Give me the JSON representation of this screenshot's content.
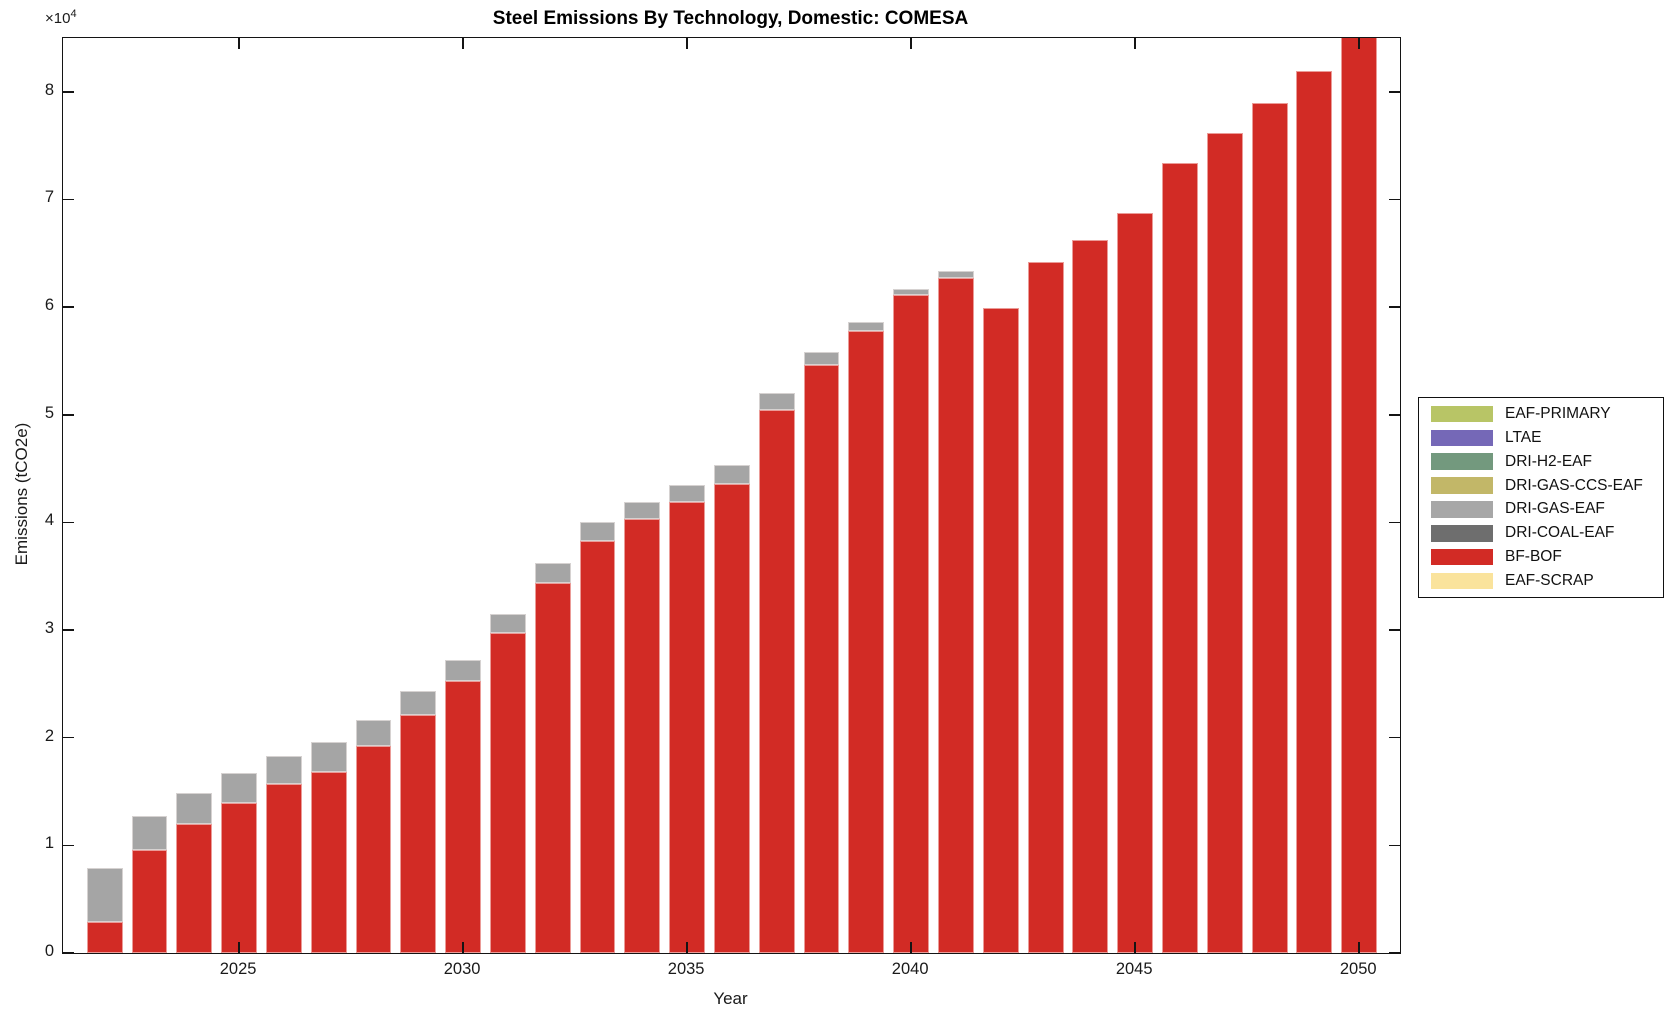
{
  "figure": {
    "title": "Steel Emissions By Technology, Domestic: COMESA",
    "xlabel": "Year",
    "ylabel": "Emissions (tCO2e)",
    "y_axis_multiplier_base": "×10",
    "y_axis_multiplier_exponent": "4"
  },
  "axes": {
    "xlim": [
      2021.07,
      2050.91
    ],
    "ylim": [
      0,
      85000
    ],
    "xticks": [
      2025,
      2030,
      2035,
      2040,
      2045,
      2050
    ],
    "xtick_labels": [
      "2025",
      "2030",
      "2035",
      "2040",
      "2045",
      "2050"
    ],
    "yticks": [
      0,
      10000,
      20000,
      30000,
      40000,
      50000,
      60000,
      70000,
      80000
    ],
    "ytick_labels": [
      "0",
      "1",
      "2",
      "3",
      "4",
      "5",
      "6",
      "7",
      "8"
    ],
    "grid": false,
    "box": true,
    "tick_direction": "in"
  },
  "legend": {
    "position": "right-outside",
    "entries": [
      {
        "label": "EAF-PRIMARY",
        "color": "#B8C566"
      },
      {
        "label": "LTAE",
        "color": "#7568B7"
      },
      {
        "label": "DRI-H2-EAF",
        "color": "#73997E"
      },
      {
        "label": "DRI-GAS-CCS-EAF",
        "color": "#C2B768"
      },
      {
        "label": "DRI-GAS-EAF",
        "color": "#A7A7A7"
      },
      {
        "label": "DRI-COAL-EAF",
        "color": "#6E6E6E"
      },
      {
        "label": "BF-BOF",
        "color": "#D22B25"
      },
      {
        "label": "EAF-SCRAP",
        "color": "#FAE39C"
      }
    ]
  },
  "chart_data": {
    "type": "bar",
    "stacked": true,
    "title": "Steel Emissions By Technology, Domestic: COMESA",
    "xlabel": "Year",
    "ylabel": "Emissions (tCO2e)",
    "ylim": [
      0,
      85000
    ],
    "bar_width_fraction": 0.8,
    "x": [
      2022,
      2023,
      2024,
      2025,
      2026,
      2027,
      2028,
      2029,
      2030,
      2031,
      2032,
      2033,
      2034,
      2035,
      2036,
      2037,
      2038,
      2039,
      2040,
      2041,
      2042,
      2043,
      2044,
      2045,
      2046,
      2047,
      2048,
      2049,
      2050
    ],
    "stack_order_bottom_to_top": [
      "EAF-SCRAP",
      "BF-BOF",
      "DRI-COAL-EAF",
      "DRI-GAS-EAF",
      "DRI-GAS-CCS-EAF",
      "DRI-H2-EAF",
      "LTAE",
      "EAF-PRIMARY"
    ],
    "series": [
      {
        "name": "EAF-PRIMARY",
        "color": "#B8C566",
        "values": [
          0,
          0,
          0,
          0,
          0,
          0,
          0,
          0,
          0,
          0,
          0,
          0,
          0,
          0,
          0,
          0,
          0,
          0,
          0,
          0,
          0,
          0,
          0,
          0,
          0,
          0,
          0,
          0,
          0
        ]
      },
      {
        "name": "LTAE",
        "color": "#7568B7",
        "values": [
          0,
          0,
          0,
          0,
          0,
          0,
          0,
          0,
          0,
          0,
          0,
          0,
          0,
          0,
          0,
          0,
          0,
          0,
          0,
          0,
          0,
          0,
          0,
          0,
          0,
          0,
          0,
          0,
          0
        ]
      },
      {
        "name": "DRI-H2-EAF",
        "color": "#73997E",
        "values": [
          0,
          0,
          0,
          0,
          0,
          0,
          0,
          0,
          0,
          0,
          0,
          0,
          0,
          0,
          0,
          0,
          0,
          0,
          0,
          0,
          0,
          0,
          0,
          0,
          0,
          0,
          0,
          0,
          0
        ]
      },
      {
        "name": "DRI-GAS-CCS-EAF",
        "color": "#C2B768",
        "values": [
          0,
          0,
          0,
          0,
          0,
          0,
          0,
          0,
          0,
          0,
          0,
          0,
          0,
          0,
          0,
          0,
          0,
          0,
          0,
          0,
          0,
          0,
          0,
          0,
          0,
          0,
          0,
          0,
          0
        ]
      },
      {
        "name": "DRI-GAS-EAF",
        "color": "#A5A5A5",
        "values": [
          5000,
          3100,
          2900,
          2800,
          2600,
          2800,
          2400,
          2200,
          1900,
          1800,
          1800,
          1700,
          1600,
          1600,
          1700,
          1600,
          1200,
          800,
          600,
          700,
          0,
          0,
          0,
          0,
          0,
          0,
          0,
          0,
          0
        ]
      },
      {
        "name": "DRI-COAL-EAF",
        "color": "#6E6E6E",
        "values": [
          0,
          0,
          0,
          0,
          0,
          0,
          0,
          0,
          0,
          0,
          0,
          0,
          0,
          0,
          0,
          0,
          0,
          0,
          0,
          0,
          0,
          0,
          0,
          0,
          0,
          0,
          0,
          0,
          0
        ]
      },
      {
        "name": "BF-BOF",
        "color": "#D22B25",
        "values": [
          2900,
          9600,
          12000,
          13900,
          15700,
          16800,
          19200,
          22100,
          25300,
          29700,
          34400,
          38300,
          40300,
          41900,
          43600,
          50400,
          54600,
          57800,
          61100,
          62700,
          59900,
          64200,
          66200,
          68700,
          73400,
          76200,
          79000,
          81900,
          85500
        ]
      },
      {
        "name": "EAF-SCRAP",
        "color": "#FAE39C",
        "values": [
          0,
          0,
          0,
          0,
          0,
          0,
          0,
          0,
          0,
          0,
          0,
          0,
          0,
          0,
          0,
          0,
          0,
          0,
          0,
          0,
          0,
          0,
          0,
          0,
          0,
          0,
          0,
          0,
          0
        ]
      }
    ]
  }
}
